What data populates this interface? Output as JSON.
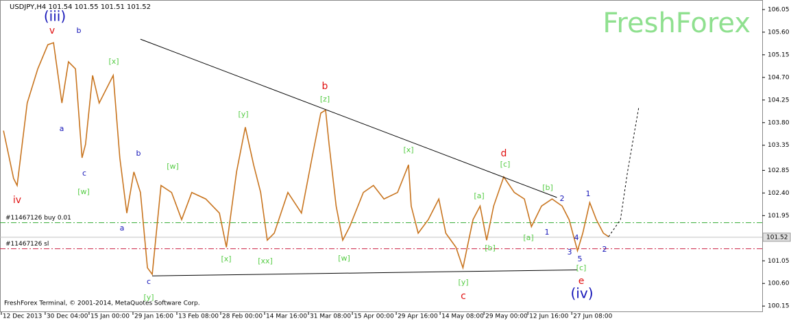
{
  "chart_data": {
    "type": "line",
    "title": "USDJPY,H4  101.54 101.55 101.51 101.52",
    "watermark": "FreshForex",
    "footer": "FreshForex Terminal, © 2001-2014, MetaQuotes Software Corp.",
    "categories": [
      "12 Dec 2013",
      "30 Dec 04:00",
      "15 Jan 00:00",
      "29 Jan 16:00",
      "13 Feb 08:00",
      "28 Feb 00:00",
      "14 Mar 16:00",
      "31 Mar 08:00",
      "15 Apr 00:00",
      "29 Apr 16:00",
      "14 May 08:00",
      "29 May 00:00",
      "12 Jun 16:00",
      "27 Jun 08:00"
    ],
    "xlim": [
      -0.03,
      17.34
    ],
    "ylim": [
      100.03,
      106.24
    ],
    "yticks": [
      {
        "value": 106.05,
        "label": "106.05"
      },
      {
        "value": 105.6,
        "label": "105.60"
      },
      {
        "value": 105.15,
        "label": "105.15"
      },
      {
        "value": 104.7,
        "label": "104.70"
      },
      {
        "value": 104.25,
        "label": "104.25"
      },
      {
        "value": 103.8,
        "label": "103.80"
      },
      {
        "value": 103.35,
        "label": "103.35"
      },
      {
        "value": 102.85,
        "label": "102.85"
      },
      {
        "value": 102.4,
        "label": "102.40"
      },
      {
        "value": 101.95,
        "label": "101.95"
      },
      {
        "value": 101.05,
        "label": "101.05"
      },
      {
        "value": 100.6,
        "label": "100.60"
      },
      {
        "value": 100.15,
        "label": "100.15"
      }
    ],
    "current_price": 101.52,
    "series": [
      {
        "color": "#c8741e",
        "style": "solid",
        "x": [
          0.05,
          0.28,
          0.36,
          0.59,
          0.83,
          1.06,
          1.19,
          1.38,
          1.53,
          1.69,
          1.84,
          1.92,
          2.08,
          2.23,
          2.55,
          2.7,
          2.86,
          3.02,
          3.17,
          3.33,
          3.44,
          3.64,
          3.88,
          4.11,
          4.34,
          4.66,
          4.97,
          5.13,
          5.36,
          5.56,
          5.75,
          5.91,
          6.06,
          6.22,
          6.53,
          6.84,
          7.08,
          7.28,
          7.39,
          7.47,
          7.63,
          7.78,
          7.94,
          8.25,
          8.48,
          8.72,
          9.03,
          9.28,
          9.34,
          9.5,
          9.73,
          9.97,
          10.13,
          10.36,
          10.52,
          10.75,
          10.91,
          11.06,
          11.22,
          11.45,
          11.69,
          11.92,
          12.08,
          12.31,
          12.55,
          12.78,
          12.94,
          13.13,
          13.25,
          13.41,
          13.56,
          13.72,
          13.84
        ],
        "values": [
          103.64,
          102.69,
          102.55,
          104.19,
          104.87,
          105.35,
          105.39,
          104.19,
          105.01,
          104.87,
          103.1,
          103.37,
          104.74,
          104.19,
          104.74,
          103.1,
          102.0,
          102.82,
          102.41,
          100.91,
          100.78,
          102.55,
          102.41,
          101.87,
          102.41,
          102.28,
          102.0,
          101.32,
          102.82,
          103.71,
          102.96,
          102.41,
          101.46,
          101.6,
          102.41,
          102.0,
          103.1,
          103.99,
          104.05,
          103.37,
          102.14,
          101.46,
          101.73,
          102.41,
          102.55,
          102.28,
          102.41,
          102.96,
          102.14,
          101.6,
          101.87,
          102.28,
          101.6,
          101.32,
          100.91,
          101.87,
          102.14,
          101.46,
          102.14,
          102.72,
          102.41,
          102.28,
          101.73,
          102.14,
          102.28,
          102.14,
          101.87,
          101.25,
          101.6,
          102.21,
          101.87,
          101.6,
          101.53
        ]
      },
      {
        "color": "#000000",
        "style": "dotted",
        "x": [
          13.84,
          14.11,
          14.27,
          14.53
        ],
        "values": [
          101.53,
          101.87,
          102.82,
          104.12
        ]
      },
      {
        "color": "#000000",
        "style": "solid",
        "x": [
          3.17,
          12.66
        ],
        "values": [
          105.46,
          102.31
        ]
      },
      {
        "color": "#000000",
        "style": "solid",
        "x": [
          3.44,
          13.13
        ],
        "values": [
          100.75,
          100.87
        ]
      }
    ],
    "levels": [
      {
        "name": "#11467126 buy 0.01",
        "value": 101.81,
        "color": "#33aa33"
      },
      {
        "name": "#11467126 sl",
        "value": 101.29,
        "color": "#cc2244"
      }
    ],
    "annotations": [
      {
        "text": "(iii)",
        "color": "#1414b8"
      },
      {
        "text": "v",
        "color": "#e01010"
      },
      {
        "text": "b",
        "color": "#1414b8"
      },
      {
        "text": "[x]",
        "color": "#55cc44"
      },
      {
        "text": "a",
        "color": "#1414b8"
      },
      {
        "text": "c",
        "color": "#1414b8"
      },
      {
        "text": "[w]",
        "color": "#55cc44"
      },
      {
        "text": "iv",
        "color": "#e01010"
      },
      {
        "text": "b",
        "color": "#1414b8"
      },
      {
        "text": "a",
        "color": "#1414b8"
      },
      {
        "text": "[w]",
        "color": "#55cc44"
      },
      {
        "text": "c",
        "color": "#1414b8"
      },
      {
        "text": "[y]",
        "color": "#55cc44"
      },
      {
        "text": "[y]",
        "color": "#55cc44"
      },
      {
        "text": "[x]",
        "color": "#55cc44"
      },
      {
        "text": "[xx]",
        "color": "#55cc44"
      },
      {
        "text": "b",
        "color": "#e01010"
      },
      {
        "text": "[z]",
        "color": "#55cc44"
      },
      {
        "text": "[w]",
        "color": "#55cc44"
      },
      {
        "text": "[x]",
        "color": "#55cc44"
      },
      {
        "text": "[a]",
        "color": "#55cc44"
      },
      {
        "text": "[b]",
        "color": "#55cc44"
      },
      {
        "text": "d",
        "color": "#e01010"
      },
      {
        "text": "[c]",
        "color": "#55cc44"
      },
      {
        "text": "[b]",
        "color": "#55cc44"
      },
      {
        "text": "2",
        "color": "#1414b8"
      },
      {
        "text": "[a]",
        "color": "#55cc44"
      },
      {
        "text": "1",
        "color": "#1414b8"
      },
      {
        "text": "1",
        "color": "#1414b8"
      },
      {
        "text": "4",
        "color": "#1414b8"
      },
      {
        "text": "3",
        "color": "#1414b8"
      },
      {
        "text": "5",
        "color": "#1414b8"
      },
      {
        "text": "2",
        "color": "#1414b8"
      },
      {
        "text": "[c]",
        "color": "#55cc44"
      },
      {
        "text": "[y]",
        "color": "#55cc44"
      },
      {
        "text": "e",
        "color": "#e01010"
      },
      {
        "text": "c",
        "color": "#e01010"
      },
      {
        "text": "(iv)",
        "color": "#1414b8"
      }
    ]
  }
}
